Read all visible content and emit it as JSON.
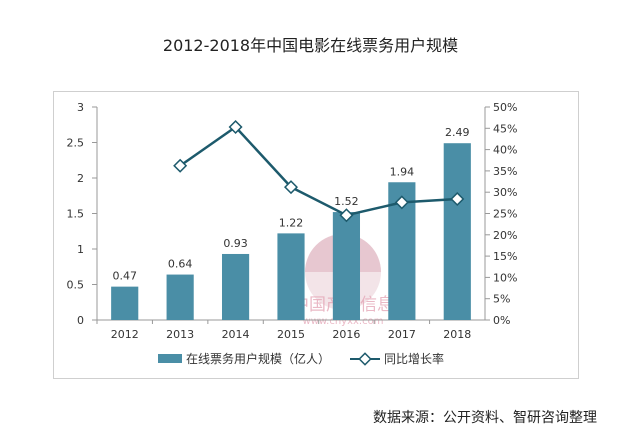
{
  "chart_data": {
    "type": "bar",
    "title": "2012-2018年中国电影在线票务用户规模",
    "categories": [
      "2012",
      "2013",
      "2014",
      "2015",
      "2016",
      "2017",
      "2018"
    ],
    "series": [
      {
        "name": "在线票务用户规模（亿人）",
        "type": "bar",
        "axis": "left",
        "values": [
          0.47,
          0.64,
          0.93,
          1.22,
          1.52,
          1.94,
          2.49
        ],
        "data_labels": [
          "0.47",
          "0.64",
          "0.93",
          "1.22",
          "1.52",
          "1.94",
          "2.49"
        ],
        "color": "#4a8ea6"
      },
      {
        "name": "同比增长率",
        "type": "line",
        "axis": "right",
        "values": [
          null,
          36.2,
          45.3,
          31.2,
          24.6,
          27.6,
          28.4
        ],
        "color": "#1d5a6c"
      }
    ],
    "y_left": {
      "min": 0,
      "max": 3,
      "ticks": [
        "0",
        "0.5",
        "1",
        "1.5",
        "2",
        "2.5",
        "3"
      ]
    },
    "y_right": {
      "min": 0,
      "max": 50,
      "ticks": [
        "0%",
        "5%",
        "10%",
        "15%",
        "20%",
        "25%",
        "30%",
        "35%",
        "40%",
        "45%",
        "50%"
      ]
    },
    "grid": false,
    "legend_position": "bottom"
  },
  "watermark": {
    "text": "中国产业信息",
    "url": "www.chyxx.com"
  },
  "source": "数据来源：公开资料、智研咨询整理"
}
